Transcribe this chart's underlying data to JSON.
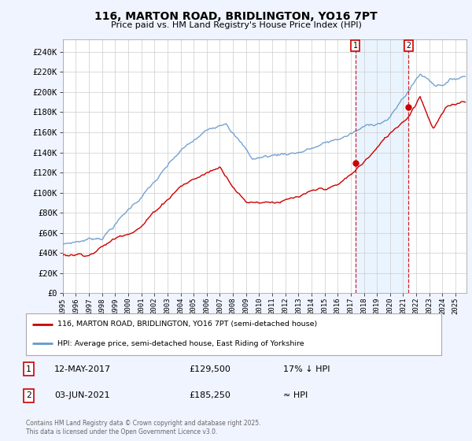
{
  "title": "116, MARTON ROAD, BRIDLINGTON, YO16 7PT",
  "subtitle": "Price paid vs. HM Land Registry's House Price Index (HPI)",
  "xlim_start": 1995.0,
  "xlim_end": 2025.83,
  "ylim": [
    0,
    252000
  ],
  "yticks": [
    0,
    20000,
    40000,
    60000,
    80000,
    100000,
    120000,
    140000,
    160000,
    180000,
    200000,
    220000,
    240000
  ],
  "ytick_labels": [
    "£0",
    "£20K",
    "£40K",
    "£60K",
    "£80K",
    "£100K",
    "£120K",
    "£140K",
    "£160K",
    "£180K",
    "£200K",
    "£220K",
    "£240K"
  ],
  "xticks": [
    1995,
    1996,
    1997,
    1998,
    1999,
    2000,
    2001,
    2002,
    2003,
    2004,
    2005,
    2006,
    2007,
    2008,
    2009,
    2010,
    2011,
    2012,
    2013,
    2014,
    2015,
    2016,
    2017,
    2018,
    2019,
    2020,
    2021,
    2022,
    2023,
    2024,
    2025
  ],
  "transaction1_x": 2017.36,
  "transaction1_price": 129500,
  "transaction2_x": 2021.42,
  "transaction2_price": 185250,
  "legend_label_red": "116, MARTON ROAD, BRIDLINGTON, YO16 7PT (semi-detached house)",
  "legend_label_blue": "HPI: Average price, semi-detached house, East Riding of Yorkshire",
  "table_row1": [
    "1",
    "12-MAY-2017",
    "£129,500",
    "17% ↓ HPI"
  ],
  "table_row2": [
    "2",
    "03-JUN-2021",
    "£185,250",
    "≈ HPI"
  ],
  "footer": "Contains HM Land Registry data © Crown copyright and database right 2025.\nThis data is licensed under the Open Government Licence v3.0.",
  "bg_color": "#f0f4ff",
  "plot_bg_color": "#ffffff",
  "red_color": "#cc0000",
  "blue_color": "#6699cc",
  "shade_color": "#ddeeff"
}
